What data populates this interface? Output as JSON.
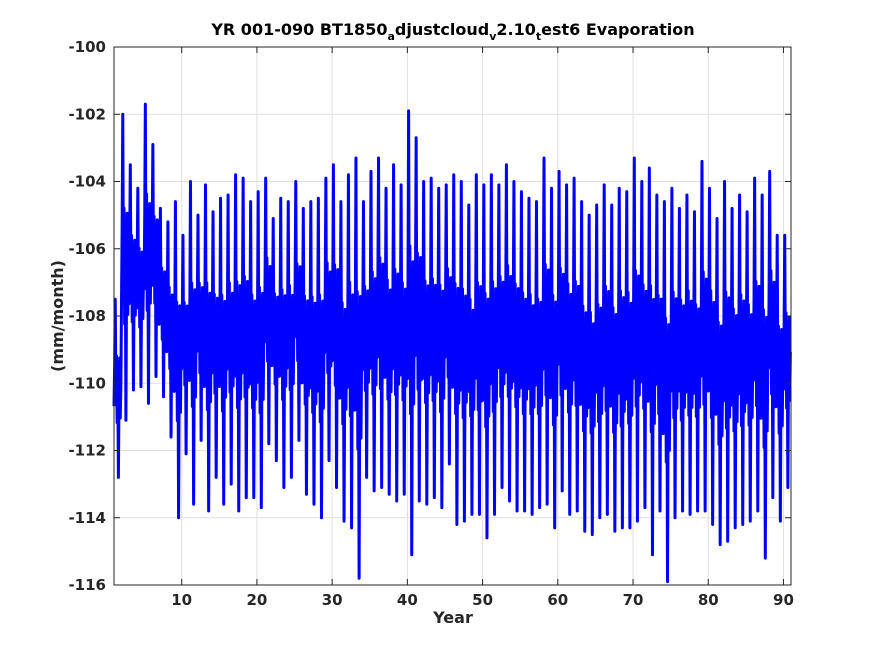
{
  "chart_data": {
    "type": "line",
    "title": {
      "part1": "YR 001-090 BT1850",
      "sub1": "a",
      "part2": "djustcloud",
      "sub2": "v",
      "part3": "2.10",
      "sub3": "t",
      "part4": "est6 Evaporation"
    },
    "xlabel": "Year",
    "ylabel": "(mm/month)",
    "xlim": [
      1,
      91
    ],
    "ylim": [
      -116,
      -100
    ],
    "xticks": [
      10,
      20,
      30,
      40,
      50,
      60,
      70,
      80,
      90
    ],
    "yticks": [
      -116,
      -114,
      -112,
      -110,
      -108,
      -106,
      -104,
      -102,
      -100
    ],
    "grid": true,
    "line_color": "#0000ff",
    "sampling": "monthly, 1080 points (90 years x 12 months)",
    "series": [
      {
        "annual_extremes": {
          "year": [
            1,
            2,
            3,
            4,
            5,
            6,
            7,
            8,
            9,
            10,
            11,
            12,
            13,
            14,
            15,
            16,
            17,
            18,
            19,
            20,
            21,
            22,
            23,
            24,
            25,
            26,
            27,
            28,
            29,
            30,
            31,
            32,
            33,
            34,
            35,
            36,
            37,
            38,
            39,
            40,
            41,
            42,
            43,
            44,
            45,
            46,
            47,
            48,
            49,
            50,
            51,
            52,
            53,
            54,
            55,
            56,
            57,
            58,
            59,
            60,
            61,
            62,
            63,
            64,
            65,
            66,
            67,
            68,
            69,
            70,
            71,
            72,
            73,
            74,
            75,
            76,
            77,
            78,
            79,
            80,
            81,
            82,
            83,
            84,
            85,
            86,
            87,
            88,
            89,
            90
          ],
          "max": [
            -107.5,
            -102.0,
            -103.5,
            -104.2,
            -101.7,
            -102.9,
            -104.8,
            -105.2,
            -104.6,
            -105.6,
            -104.0,
            -105.0,
            -104.1,
            -104.9,
            -104.5,
            -104.4,
            -103.8,
            -103.9,
            -104.6,
            -104.3,
            -103.9,
            -105.1,
            -104.5,
            -104.6,
            -104.0,
            -104.8,
            -104.6,
            -104.5,
            -103.9,
            -103.5,
            -104.6,
            -103.8,
            -103.3,
            -104.6,
            -103.7,
            -103.3,
            -104.2,
            -103.5,
            -104.1,
            -101.9,
            -102.7,
            -104.0,
            -103.9,
            -104.2,
            -104.1,
            -103.8,
            -104.0,
            -104.7,
            -103.8,
            -104.1,
            -103.8,
            -104.1,
            -103.5,
            -104.0,
            -104.3,
            -104.5,
            -104.6,
            -103.3,
            -104.2,
            -103.7,
            -104.1,
            -103.9,
            -104.6,
            -105.0,
            -104.7,
            -104.1,
            -104.7,
            -104.2,
            -104.3,
            -103.3,
            -104.0,
            -103.6,
            -104.4,
            -104.6,
            -104.2,
            -104.8,
            -104.4,
            -104.9,
            -103.4,
            -104.2,
            -105.1,
            -104.0,
            -104.8,
            -104.4,
            -104.9,
            -103.9,
            -104.4,
            -103.7,
            -105.6,
            -105.6
          ],
          "min": [
            -112.8,
            -111.1,
            -110.2,
            -110.1,
            -110.6,
            -109.8,
            -110.4,
            -111.6,
            -114.0,
            -112.1,
            -113.6,
            -111.7,
            -113.8,
            -112.8,
            -113.6,
            -113.0,
            -113.8,
            -113.4,
            -113.4,
            -113.7,
            -111.8,
            -112.3,
            -113.1,
            -112.8,
            -111.7,
            -113.3,
            -113.6,
            -114.0,
            -112.3,
            -113.1,
            -114.1,
            -114.3,
            -115.8,
            -112.8,
            -113.2,
            -113.1,
            -113.3,
            -113.5,
            -113.3,
            -115.1,
            -113.5,
            -113.6,
            -113.4,
            -113.7,
            -112.4,
            -114.2,
            -114.1,
            -113.9,
            -113.9,
            -114.6,
            -113.9,
            -113.1,
            -113.5,
            -113.8,
            -113.8,
            -113.9,
            -113.7,
            -113.6,
            -114.3,
            -113.2,
            -113.9,
            -113.8,
            -114.4,
            -114.5,
            -114.0,
            -113.9,
            -114.4,
            -114.3,
            -114.3,
            -114.1,
            -113.7,
            -115.1,
            -113.8,
            -115.9,
            -114.0,
            -113.8,
            -113.9,
            -113.8,
            -113.8,
            -114.2,
            -114.8,
            -114.7,
            -114.3,
            -114.2,
            -114.1,
            -113.8,
            -115.2,
            -113.4,
            -114.1,
            -113.1
          ]
        }
      }
    ]
  }
}
